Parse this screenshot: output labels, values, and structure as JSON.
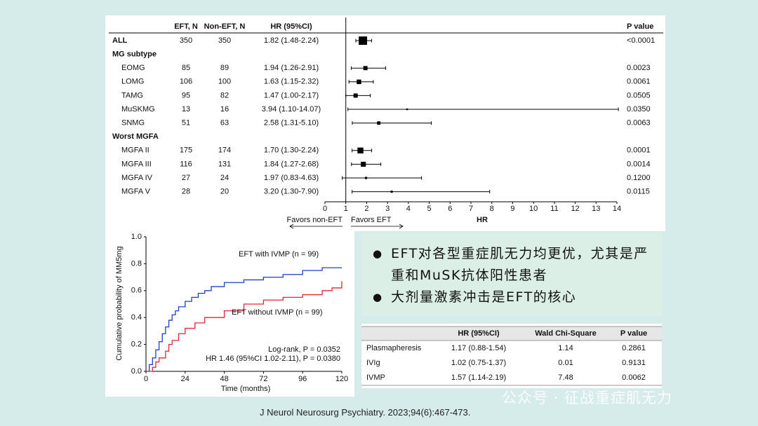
{
  "chart_data": [
    {
      "type": "forest",
      "columns": [
        "EFT, N",
        "Non-EFT, N",
        "HR (95%CI)",
        "P value"
      ],
      "rows": [
        {
          "label": "ALL",
          "eft": 350,
          "non_eft": 350,
          "hr_label": "1.82 (1.48-2.24)",
          "hr": 1.82,
          "lo": 1.48,
          "hi": 2.24,
          "p": "<0.0001"
        },
        {
          "label": "MG subtype",
          "rows": [
            {
              "label": "EOMG",
              "eft": 85,
              "non_eft": 89,
              "hr_label": "1.94 (1.26-2.91)",
              "hr": 1.94,
              "lo": 1.26,
              "hi": 2.91,
              "p": "0.0023"
            },
            {
              "label": "LOMG",
              "eft": 106,
              "non_eft": 100,
              "hr_label": "1.63 (1.15-2.32)",
              "hr": 1.63,
              "lo": 1.15,
              "hi": 2.32,
              "p": "0.0061"
            },
            {
              "label": "TAMG",
              "eft": 95,
              "non_eft": 82,
              "hr_label": "1.47 (1.00-2.17)",
              "hr": 1.47,
              "lo": 1.0,
              "hi": 2.17,
              "p": "0.0505"
            },
            {
              "label": "MuSKMG",
              "eft": 13,
              "non_eft": 16,
              "hr_label": "3.94 (1.10-14.07)",
              "hr": 3.94,
              "lo": 1.1,
              "hi": 14.07,
              "p": "0.0350"
            },
            {
              "label": "SNMG",
              "eft": 51,
              "non_eft": 63,
              "hr_label": "2.58 (1.31-5.10)",
              "hr": 2.58,
              "lo": 1.31,
              "hi": 5.1,
              "p": "0.0063"
            }
          ]
        },
        {
          "label": "Worst MGFA",
          "rows": [
            {
              "label": "MGFA II",
              "eft": 175,
              "non_eft": 174,
              "hr_label": "1.70 (1.30-2.24)",
              "hr": 1.7,
              "lo": 1.3,
              "hi": 2.24,
              "p": "0.0001"
            },
            {
              "label": "MGFA III",
              "eft": 116,
              "non_eft": 131,
              "hr_label": "1.84 (1.27-2.68)",
              "hr": 1.84,
              "lo": 1.27,
              "hi": 2.68,
              "p": "0.0014"
            },
            {
              "label": "MGFA IV",
              "eft": 27,
              "non_eft": 24,
              "hr_label": "1.97 (0.83-4.63)",
              "hr": 1.97,
              "lo": 0.83,
              "hi": 4.63,
              "p": "0.1200"
            },
            {
              "label": "MGFA V",
              "eft": 28,
              "non_eft": 20,
              "hr_label": "3.20 (1.30-7.90)",
              "hr": 3.2,
              "lo": 1.3,
              "hi": 7.9,
              "p": "0.0115"
            }
          ]
        }
      ],
      "xlim": [
        0,
        14
      ],
      "xticks": [
        0,
        1,
        2,
        3,
        4,
        5,
        6,
        7,
        8,
        9,
        10,
        11,
        12,
        13,
        14
      ],
      "ref_line": 1,
      "xlabel": "HR",
      "favors_left": "Favors non-EFT",
      "favors_right": "Favors EFT"
    },
    {
      "type": "line",
      "step": true,
      "xlim": [
        0,
        120
      ],
      "xticks": [
        0,
        24,
        48,
        72,
        96,
        120
      ],
      "ylim": [
        0,
        1
      ],
      "yticks": [
        {
          "value": 0,
          "label": "0.0"
        },
        0.2,
        0.4,
        0.6,
        0.8,
        {
          "value": 1,
          "label": "1.0"
        }
      ],
      "xlabel": "Time (months)",
      "ylabel": "Cumulative probability of MM5mg",
      "series": [
        {
          "name": "EFT with IVMP (n = 99)",
          "color": "#1f3fd1",
          "x": [
            0,
            2,
            4,
            6,
            8,
            10,
            12,
            14,
            16,
            18,
            20,
            24,
            28,
            32,
            36,
            40,
            48,
            60,
            72,
            84,
            96,
            108,
            120
          ],
          "values": [
            0,
            0.05,
            0.1,
            0.16,
            0.22,
            0.28,
            0.33,
            0.38,
            0.42,
            0.45,
            0.48,
            0.52,
            0.55,
            0.58,
            0.6,
            0.63,
            0.66,
            0.68,
            0.7,
            0.72,
            0.75,
            0.77,
            0.77
          ]
        },
        {
          "name": "EFT without IVMP (n = 99)",
          "color": "#e0263a",
          "x": [
            0,
            4,
            6,
            8,
            12,
            14,
            16,
            20,
            24,
            30,
            36,
            48,
            60,
            72,
            84,
            96,
            108,
            114,
            120
          ],
          "values": [
            0,
            0.03,
            0.07,
            0.1,
            0.15,
            0.2,
            0.23,
            0.28,
            0.32,
            0.36,
            0.4,
            0.45,
            0.5,
            0.53,
            0.55,
            0.57,
            0.6,
            0.62,
            0.67
          ]
        }
      ],
      "annotations": [
        "Log-rank, P = 0.0352",
        "HR 1.46 (95%CI 1.02-2.11), P = 0.0380"
      ]
    }
  ],
  "bullets": [
    "EFT对各型重症肌无力均更优，尤其是严重和MuSK抗体阳性患者",
    "大剂量激素冲击是EFT的核心"
  ],
  "table": {
    "header": [
      "",
      "HR (95%CI)",
      "Wald Chi-Square",
      "P value"
    ],
    "rows": [
      [
        "Plasmapheresis",
        "1.17 (0.88-1.54)",
        "1.14",
        "0.2861"
      ],
      [
        "IVIg",
        "1.02 (0.75-1.37)",
        "0.01",
        "0.9131"
      ],
      [
        "IVMP",
        "1.57 (1.14-2.19)",
        "7.48",
        "0.0062"
      ]
    ],
    "highlight_row": 2,
    "highlight_color": "#e0263a"
  },
  "citation": "J Neurol Neurosurg Psychiatry. 2023;94(6):467-473.",
  "watermark": "公众号 · 征战重症肌无力"
}
